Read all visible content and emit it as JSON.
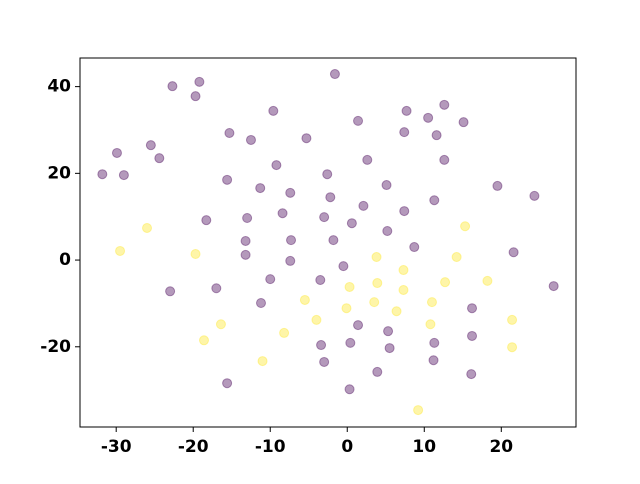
{
  "chart_data": {
    "type": "scatter",
    "xlim": [
      -34.7,
      29.7
    ],
    "ylim": [
      -38.5,
      46.6
    ],
    "xticks": [
      -30,
      -20,
      -10,
      0,
      10,
      20
    ],
    "yticks": [
      -20,
      0,
      20,
      40
    ],
    "alpha": 0.4,
    "series": [
      {
        "color": "#440154",
        "x": [
          -31.8,
          -29.9,
          -29.0,
          -25.5,
          -24.4,
          -22.7,
          -19.2,
          -19.7,
          -15.3,
          -12.5,
          -9.6,
          -5.3,
          -1.6,
          1.4,
          7.7,
          10.5,
          12.6,
          15.1,
          7.4,
          11.6,
          2.6,
          12.6,
          -9.2,
          -15.6,
          -11.3,
          -7.4,
          -2.6,
          -2.2,
          2.1,
          5.1,
          7.4,
          11.3,
          19.5,
          24.3,
          -18.3,
          -13.0,
          -8.4,
          -3.0,
          0.6,
          -13.2,
          -7.3,
          -1.8,
          5.2,
          8.7,
          -13.2,
          -7.4,
          -10.0,
          -3.5,
          -0.5,
          21.6,
          26.8,
          -23.0,
          -17.0,
          -11.2,
          1.4,
          5.3,
          16.2,
          16.2,
          -3.4,
          0.4,
          5.5,
          11.3,
          -3.0,
          11.2,
          3.9,
          16.1,
          -15.6,
          0.3
        ],
        "values": [
          19.8,
          24.7,
          19.6,
          26.5,
          23.5,
          40.1,
          41.1,
          37.8,
          29.3,
          27.7,
          34.4,
          28.1,
          42.9,
          32.1,
          34.4,
          32.8,
          35.8,
          31.8,
          29.5,
          28.8,
          23.1,
          23.1,
          21.9,
          18.5,
          16.6,
          15.5,
          19.8,
          14.5,
          12.5,
          17.3,
          11.3,
          13.8,
          17.1,
          14.8,
          9.2,
          9.7,
          10.8,
          9.9,
          8.5,
          4.4,
          4.6,
          4.6,
          6.7,
          3.0,
          1.2,
          -0.2,
          -4.4,
          -4.6,
          -1.4,
          1.8,
          -6.0,
          -7.2,
          -6.5,
          -9.9,
          -15.0,
          -16.4,
          -11.1,
          -17.5,
          -19.6,
          -19.1,
          -20.3,
          -19.1,
          -23.5,
          -23.1,
          -25.8,
          -26.3,
          -28.4,
          -29.8
        ]
      },
      {
        "color": "#fde725",
        "x": [
          -26.0,
          -29.5,
          -19.7,
          15.3,
          3.8,
          14.2,
          7.3,
          0.3,
          3.9,
          12.7,
          18.2,
          7.3,
          -5.5,
          3.5,
          11.0,
          -0.1,
          6.4,
          -4.0,
          -16.4,
          10.8,
          21.4,
          -8.2,
          -18.6,
          21.4,
          -11.0,
          9.2
        ],
        "values": [
          7.4,
          2.1,
          1.4,
          7.8,
          0.7,
          0.7,
          -2.3,
          -6.2,
          -5.3,
          -5.1,
          -4.8,
          -6.9,
          -9.2,
          -9.7,
          -9.7,
          -11.1,
          -11.8,
          -13.8,
          -14.8,
          -14.8,
          -13.8,
          -16.8,
          -18.5,
          -20.1,
          -23.3,
          -34.6
        ]
      }
    ]
  }
}
